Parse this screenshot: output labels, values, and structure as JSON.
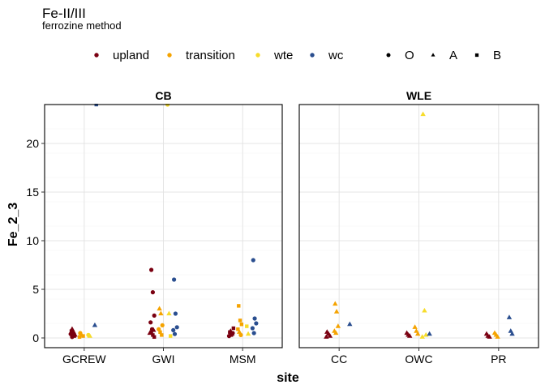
{
  "chart_data": {
    "type": "scatter",
    "title": "Fe-II/III",
    "subtitle": "ferrozine method",
    "xlabel": "site",
    "ylabel": "Fe_2_3",
    "ylim": [
      -1,
      24
    ],
    "yticks": [
      0,
      5,
      10,
      15,
      20
    ],
    "grid": true,
    "legend_position": "top",
    "color_legend": [
      {
        "key": "upland",
        "label": "upland",
        "color": "#7a0011"
      },
      {
        "key": "transition",
        "label": "transition",
        "color": "#f5a300"
      },
      {
        "key": "wte",
        "label": "wte",
        "color": "#f7dc2a"
      },
      {
        "key": "wc",
        "label": "wc",
        "color": "#2a4e8f"
      }
    ],
    "shape_legend": [
      {
        "key": "O",
        "label": "O",
        "shape": "circle"
      },
      {
        "key": "A",
        "label": "A",
        "shape": "triangle"
      },
      {
        "key": "B",
        "label": "B",
        "shape": "square"
      }
    ],
    "panels": [
      {
        "strip": "CB",
        "sites": [
          "GCREW",
          "GWI",
          "MSM"
        ],
        "points": [
          {
            "site": "GCREW",
            "zone": "upland",
            "horizon": "A",
            "y": 0.9
          },
          {
            "site": "GCREW",
            "zone": "upland",
            "horizon": "A",
            "y": 0.6
          },
          {
            "site": "GCREW",
            "zone": "upland",
            "horizon": "A",
            "y": 0.3
          },
          {
            "site": "GCREW",
            "zone": "upland",
            "horizon": "B",
            "y": 0.7
          },
          {
            "site": "GCREW",
            "zone": "upland",
            "horizon": "B",
            "y": 0.5
          },
          {
            "site": "GCREW",
            "zone": "upland",
            "horizon": "B",
            "y": 0.2
          },
          {
            "site": "GCREW",
            "zone": "upland",
            "horizon": "O",
            "y": 0.4
          },
          {
            "site": "GCREW",
            "zone": "upland",
            "horizon": "O",
            "y": 0.1
          },
          {
            "site": "GCREW",
            "zone": "transition",
            "horizon": "O",
            "y": 0.5
          },
          {
            "site": "GCREW",
            "zone": "transition",
            "horizon": "A",
            "y": 0.3
          },
          {
            "site": "GCREW",
            "zone": "transition",
            "horizon": "B",
            "y": 0.2
          },
          {
            "site": "GCREW",
            "zone": "transition",
            "horizon": "B",
            "y": 0.1
          },
          {
            "site": "GCREW",
            "zone": "wte",
            "horizon": "O",
            "y": 0.3
          },
          {
            "site": "GCREW",
            "zone": "wte",
            "horizon": "A",
            "y": 0.2
          },
          {
            "site": "GCREW",
            "zone": "wc",
            "horizon": "A",
            "y": 1.3
          },
          {
            "site": "GCREW",
            "zone": "wc",
            "horizon": "B",
            "y": 24.0
          },
          {
            "site": "GWI",
            "zone": "upland",
            "horizon": "O",
            "y": 7.0
          },
          {
            "site": "GWI",
            "zone": "upland",
            "horizon": "O",
            "y": 4.7
          },
          {
            "site": "GWI",
            "zone": "upland",
            "horizon": "O",
            "y": 2.3
          },
          {
            "site": "GWI",
            "zone": "upland",
            "horizon": "O",
            "y": 1.6
          },
          {
            "site": "GWI",
            "zone": "upland",
            "horizon": "O",
            "y": 0.9
          },
          {
            "site": "GWI",
            "zone": "upland",
            "horizon": "A",
            "y": 0.8
          },
          {
            "site": "GWI",
            "zone": "upland",
            "horizon": "A",
            "y": 0.5
          },
          {
            "site": "GWI",
            "zone": "upland",
            "horizon": "B",
            "y": 0.6
          },
          {
            "site": "GWI",
            "zone": "upland",
            "horizon": "B",
            "y": 0.3
          },
          {
            "site": "GWI",
            "zone": "upland",
            "horizon": "B",
            "y": 0.1
          },
          {
            "site": "GWI",
            "zone": "transition",
            "horizon": "A",
            "y": 3.0
          },
          {
            "site": "GWI",
            "zone": "transition",
            "horizon": "A",
            "y": 2.5
          },
          {
            "site": "GWI",
            "zone": "transition",
            "horizon": "O",
            "y": 1.3
          },
          {
            "site": "GWI",
            "zone": "transition",
            "horizon": "O",
            "y": 0.9
          },
          {
            "site": "GWI",
            "zone": "transition",
            "horizon": "B",
            "y": 0.6
          },
          {
            "site": "GWI",
            "zone": "transition",
            "horizon": "B",
            "y": 0.3
          },
          {
            "site": "GWI",
            "zone": "wte",
            "horizon": "O",
            "y": 24.0
          },
          {
            "site": "GWI",
            "zone": "wte",
            "horizon": "A",
            "y": 2.5
          },
          {
            "site": "GWI",
            "zone": "wte",
            "horizon": "B",
            "y": 0.2
          },
          {
            "site": "GWI",
            "zone": "wc",
            "horizon": "O",
            "y": 6.0
          },
          {
            "site": "GWI",
            "zone": "wc",
            "horizon": "O",
            "y": 2.5
          },
          {
            "site": "GWI",
            "zone": "wc",
            "horizon": "O",
            "y": 1.1
          },
          {
            "site": "GWI",
            "zone": "wc",
            "horizon": "O",
            "y": 0.8
          },
          {
            "site": "GWI",
            "zone": "wc",
            "horizon": "O",
            "y": 0.4
          },
          {
            "site": "MSM",
            "zone": "upland",
            "horizon": "A",
            "y": 0.7
          },
          {
            "site": "MSM",
            "zone": "upland",
            "horizon": "A",
            "y": 0.4
          },
          {
            "site": "MSM",
            "zone": "upland",
            "horizon": "B",
            "y": 1.0
          },
          {
            "site": "MSM",
            "zone": "upland",
            "horizon": "B",
            "y": 0.6
          },
          {
            "site": "MSM",
            "zone": "upland",
            "horizon": "B",
            "y": 0.3
          },
          {
            "site": "MSM",
            "zone": "upland",
            "horizon": "O",
            "y": 0.5
          },
          {
            "site": "MSM",
            "zone": "upland",
            "horizon": "O",
            "y": 0.2
          },
          {
            "site": "MSM",
            "zone": "transition",
            "horizon": "B",
            "y": 3.3
          },
          {
            "site": "MSM",
            "zone": "transition",
            "horizon": "B",
            "y": 1.8
          },
          {
            "site": "MSM",
            "zone": "transition",
            "horizon": "B",
            "y": 1.4
          },
          {
            "site": "MSM",
            "zone": "transition",
            "horizon": "B",
            "y": 0.9
          },
          {
            "site": "MSM",
            "zone": "transition",
            "horizon": "A",
            "y": 0.6
          },
          {
            "site": "MSM",
            "zone": "transition",
            "horizon": "O",
            "y": 0.3
          },
          {
            "site": "MSM",
            "zone": "wte",
            "horizon": "B",
            "y": 1.2
          },
          {
            "site": "MSM",
            "zone": "wte",
            "horizon": "A",
            "y": 0.4
          },
          {
            "site": "MSM",
            "zone": "wc",
            "horizon": "O",
            "y": 8.0
          },
          {
            "site": "MSM",
            "zone": "wc",
            "horizon": "O",
            "y": 2.0
          },
          {
            "site": "MSM",
            "zone": "wc",
            "horizon": "O",
            "y": 1.5
          },
          {
            "site": "MSM",
            "zone": "wc",
            "horizon": "O",
            "y": 1.0
          },
          {
            "site": "MSM",
            "zone": "wc",
            "horizon": "O",
            "y": 0.5
          }
        ]
      },
      {
        "strip": "WLE",
        "sites": [
          "CC",
          "OWC",
          "PR"
        ],
        "points": [
          {
            "site": "CC",
            "zone": "upland",
            "horizon": "A",
            "y": 0.6
          },
          {
            "site": "CC",
            "zone": "upland",
            "horizon": "A",
            "y": 0.4
          },
          {
            "site": "CC",
            "zone": "upland",
            "horizon": "A",
            "y": 0.2
          },
          {
            "site": "CC",
            "zone": "upland",
            "horizon": "A",
            "y": 0.1
          },
          {
            "site": "CC",
            "zone": "transition",
            "horizon": "A",
            "y": 3.5
          },
          {
            "site": "CC",
            "zone": "transition",
            "horizon": "A",
            "y": 2.7
          },
          {
            "site": "CC",
            "zone": "transition",
            "horizon": "A",
            "y": 1.2
          },
          {
            "site": "CC",
            "zone": "transition",
            "horizon": "A",
            "y": 0.7
          },
          {
            "site": "CC",
            "zone": "transition",
            "horizon": "A",
            "y": 0.5
          },
          {
            "site": "CC",
            "zone": "wc",
            "horizon": "A",
            "y": 1.4
          },
          {
            "site": "OWC",
            "zone": "upland",
            "horizon": "A",
            "y": 0.5
          },
          {
            "site": "OWC",
            "zone": "upland",
            "horizon": "A",
            "y": 0.3
          },
          {
            "site": "OWC",
            "zone": "upland",
            "horizon": "A",
            "y": 0.2
          },
          {
            "site": "OWC",
            "zone": "transition",
            "horizon": "A",
            "y": 1.1
          },
          {
            "site": "OWC",
            "zone": "transition",
            "horizon": "A",
            "y": 0.7
          },
          {
            "site": "OWC",
            "zone": "transition",
            "horizon": "A",
            "y": 0.4
          },
          {
            "site": "OWC",
            "zone": "wte",
            "horizon": "A",
            "y": 23.0
          },
          {
            "site": "OWC",
            "zone": "wte",
            "horizon": "A",
            "y": 2.8
          },
          {
            "site": "OWC",
            "zone": "wte",
            "horizon": "A",
            "y": 0.3
          },
          {
            "site": "OWC",
            "zone": "wte",
            "horizon": "A",
            "y": 0.1
          },
          {
            "site": "OWC",
            "zone": "wc",
            "horizon": "A",
            "y": 0.4
          },
          {
            "site": "PR",
            "zone": "upland",
            "horizon": "A",
            "y": 0.4
          },
          {
            "site": "PR",
            "zone": "upland",
            "horizon": "A",
            "y": 0.2
          },
          {
            "site": "PR",
            "zone": "upland",
            "horizon": "A",
            "y": 0.1
          },
          {
            "site": "PR",
            "zone": "transition",
            "horizon": "A",
            "y": 0.5
          },
          {
            "site": "PR",
            "zone": "transition",
            "horizon": "A",
            "y": 0.3
          },
          {
            "site": "PR",
            "zone": "transition",
            "horizon": "A",
            "y": 0.1
          },
          {
            "site": "PR",
            "zone": "wc",
            "horizon": "A",
            "y": 2.1
          },
          {
            "site": "PR",
            "zone": "wc",
            "horizon": "A",
            "y": 0.7
          },
          {
            "site": "PR",
            "zone": "wc",
            "horizon": "A",
            "y": 0.4
          }
        ]
      }
    ]
  }
}
